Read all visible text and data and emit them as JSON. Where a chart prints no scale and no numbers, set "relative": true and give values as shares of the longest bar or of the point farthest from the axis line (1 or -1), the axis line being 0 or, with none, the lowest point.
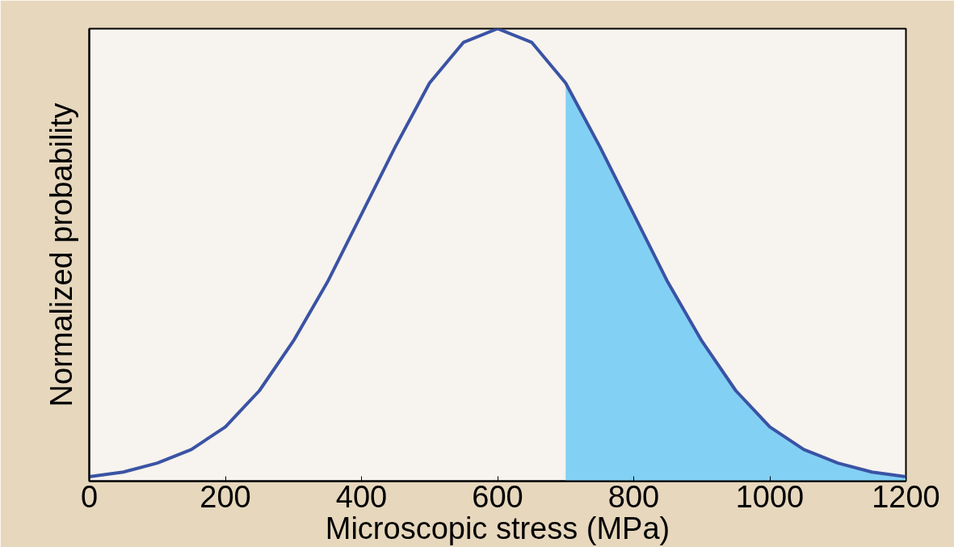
{
  "chart_data": {
    "type": "line",
    "xlabel": "Microscopic stress (MPa)",
    "ylabel": "Normalized probability",
    "relative": true,
    "xlim": [
      0,
      1200
    ],
    "xticks": [
      0,
      200,
      400,
      600,
      800,
      1000,
      1200
    ],
    "grid": false,
    "series": [
      {
        "color": "#3a53a4",
        "x": [
          0,
          50,
          100,
          150,
          200,
          250,
          300,
          350,
          400,
          450,
          500,
          550,
          600,
          650,
          700,
          750,
          800,
          850,
          900,
          950,
          1000,
          1050,
          1100,
          1150,
          1200
        ],
        "values": [
          0.01,
          0.02,
          0.04,
          0.07,
          0.12,
          0.2,
          0.31,
          0.44,
          0.59,
          0.74,
          0.88,
          0.97,
          1,
          0.97,
          0.88,
          0.74,
          0.59,
          0.44,
          0.31,
          0.2,
          0.12,
          0.07,
          0.04,
          0.02,
          0.01
        ]
      },
      {
        "type": "area",
        "color": "#83d0f5",
        "x": [
          700,
          750,
          800,
          850,
          900,
          950,
          1000,
          1050,
          1100,
          1150,
          1200
        ],
        "values": [
          0.88,
          0.74,
          0.59,
          0.44,
          0.31,
          0.2,
          0.12,
          0.07,
          0.04,
          0.02,
          0.01
        ]
      }
    ]
  }
}
